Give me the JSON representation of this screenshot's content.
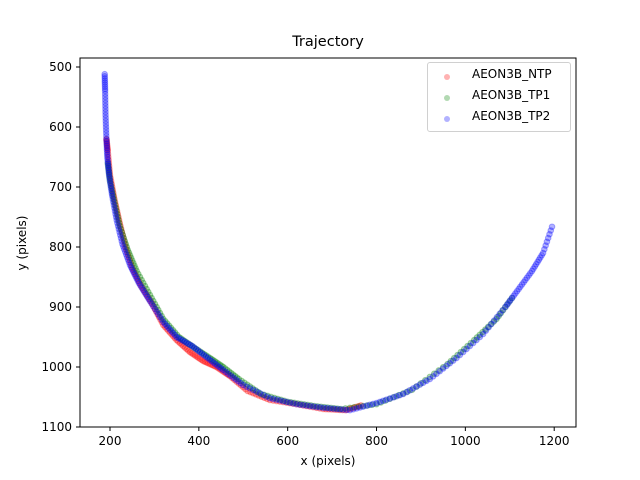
{
  "chart_data": {
    "type": "scatter",
    "title": "Trajectory",
    "xlabel": "x (pixels)",
    "ylabel": "y (pixels)",
    "xlim": [
      135,
      1255
    ],
    "ylim": [
      1100,
      485
    ],
    "y_inverted": true,
    "grid": false,
    "legend_position": "upper right",
    "xticks": [
      200,
      400,
      600,
      800,
      1000,
      1200
    ],
    "yticks": [
      500,
      600,
      700,
      800,
      900,
      1000,
      1100
    ],
    "series": [
      {
        "name": "AEON3B_NTP",
        "color": "#ff0000",
        "x": [
          192,
          195,
          200,
          210,
          222,
          235,
          250,
          270,
          295,
          320,
          350,
          380,
          410,
          440,
          470,
          510,
          560,
          620,
          680,
          730,
          770
        ],
        "y": [
          620,
          640,
          680,
          720,
          760,
          800,
          835,
          865,
          895,
          930,
          955,
          975,
          990,
          1000,
          1015,
          1040,
          1055,
          1062,
          1070,
          1072,
          1063
        ]
      },
      {
        "name": "AEON3B_TP1",
        "color": "#008000",
        "x": [
          195,
          200,
          210,
          222,
          240,
          260,
          290,
          320,
          355,
          390,
          425,
          455,
          490,
          540,
          600,
          660,
          720,
          800,
          880,
          960,
          1020,
          1070,
          1110
        ],
        "y": [
          660,
          690,
          725,
          765,
          805,
          840,
          880,
          920,
          950,
          968,
          985,
          1000,
          1020,
          1045,
          1058,
          1065,
          1070,
          1062,
          1038,
          995,
          955,
          920,
          880
        ]
      },
      {
        "name": "AEON3B_TP2",
        "color": "#0000ff",
        "x": [
          188,
          189,
          190,
          192,
          194,
          198,
          205,
          215,
          228,
          245,
          265,
          290,
          320,
          350,
          385,
          420,
          455,
          500,
          560,
          620,
          680,
          740,
          800,
          860,
          920,
          980,
          1040,
          1090,
          1120,
          1150,
          1175,
          1198
        ],
        "y": [
          512,
          540,
          580,
          620,
          650,
          680,
          715,
          755,
          795,
          830,
          860,
          890,
          925,
          950,
          965,
          985,
          1005,
          1030,
          1052,
          1062,
          1068,
          1072,
          1060,
          1045,
          1020,
          985,
          945,
          900,
          870,
          840,
          810,
          760
        ]
      }
    ]
  },
  "legend": {
    "items": [
      {
        "label": "AEON3B_NTP",
        "color": "#ff0000"
      },
      {
        "label": "AEON3B_TP1",
        "color": "#008000"
      },
      {
        "label": "AEON3B_TP2",
        "color": "#0000ff"
      }
    ]
  }
}
